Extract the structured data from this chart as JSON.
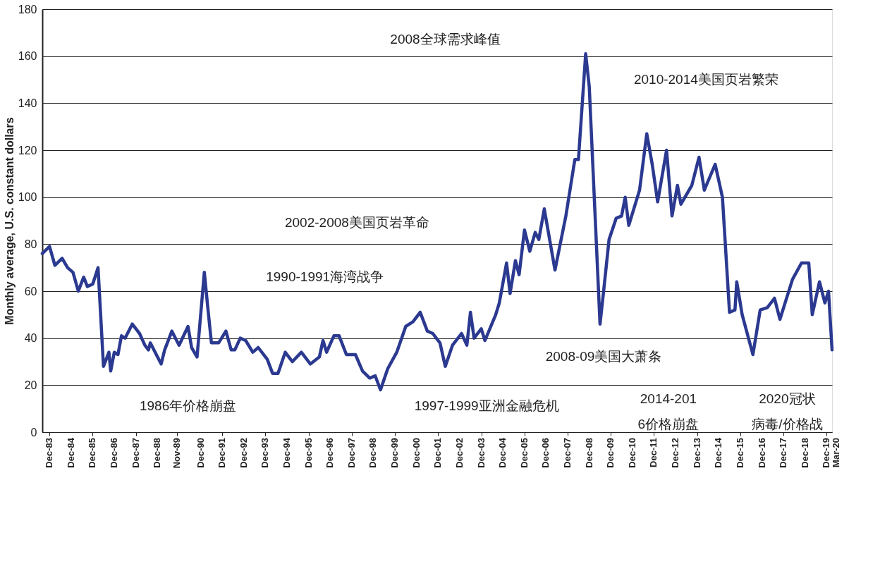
{
  "chart_data": {
    "type": "line",
    "ylabel": "Monthly average, U.S. constant dollars",
    "x": [
      "1983-08",
      "1983-12",
      "1984-03",
      "1984-07",
      "1984-10",
      "1985-01",
      "1985-04",
      "1985-07",
      "1985-09",
      "1985-12",
      "1986-03",
      "1986-06",
      "1986-09",
      "1986-10",
      "1986-12",
      "1987-02",
      "1987-04",
      "1987-06",
      "1987-10",
      "1988-02",
      "1988-05",
      "1988-07",
      "1988-08",
      "1989-02",
      "1989-04",
      "1989-08",
      "1989-12",
      "1990-05",
      "1990-07",
      "1990-10",
      "1991-02",
      "1991-04",
      "1991-06",
      "1991-10",
      "1992-02",
      "1992-05",
      "1992-07",
      "1992-10",
      "1993-01",
      "1993-05",
      "1993-08",
      "1994-01",
      "1994-04",
      "1994-07",
      "1994-11",
      "1995-03",
      "1995-08",
      "1996-01",
      "1996-06",
      "1996-08",
      "1996-10",
      "1997-02",
      "1997-05",
      "1997-09",
      "1998-02",
      "1998-06",
      "1998-10",
      "1999-01",
      "1999-04",
      "1999-08",
      "2000-01",
      "2000-06",
      "2000-10",
      "2001-02",
      "2001-06",
      "2001-09",
      "2002-01",
      "2002-04",
      "2002-08",
      "2003-01",
      "2003-04",
      "2003-06",
      "2003-08",
      "2003-12",
      "2004-02",
      "2004-08",
      "2004-10",
      "2005-02",
      "2005-04",
      "2005-07",
      "2005-09",
      "2005-12",
      "2006-03",
      "2006-06",
      "2006-08",
      "2006-11",
      "2007-05",
      "2007-11",
      "2008-04",
      "2008-06",
      "2008-10",
      "2008-12",
      "2009-06",
      "2009-08",
      "2009-11",
      "2010-03",
      "2010-06",
      "2010-08",
      "2010-10",
      "2011-04",
      "2011-08",
      "2011-11",
      "2012-02",
      "2012-07",
      "2012-10",
      "2013-01",
      "2013-03",
      "2013-09",
      "2014-01",
      "2014-04",
      "2014-10",
      "2015-02",
      "2015-06",
      "2015-09",
      "2015-10",
      "2016-01",
      "2016-07",
      "2016-11",
      "2017-03",
      "2017-07",
      "2017-10",
      "2018-05",
      "2018-10",
      "2019-02",
      "2019-04",
      "2019-08",
      "2019-11",
      "2020-01",
      "2020-03"
    ],
    "series": [
      {
        "color": "#2b3990",
        "values": [
          76,
          79,
          71,
          74,
          70,
          68,
          60,
          66,
          62,
          63,
          70,
          28,
          34,
          26,
          34,
          33,
          41,
          40,
          46,
          42,
          37,
          35,
          38,
          29,
          35,
          43,
          37,
          45,
          36,
          32,
          68,
          53,
          38,
          38,
          43,
          35,
          35,
          40,
          39,
          34,
          36,
          31,
          25,
          25,
          34,
          30,
          34,
          29,
          32,
          39,
          34,
          41,
          41,
          33,
          33,
          26,
          23,
          24,
          18,
          27,
          34,
          45,
          47,
          51,
          43,
          42,
          38,
          28,
          37,
          42,
          37,
          51,
          40,
          44,
          39,
          50,
          55,
          72,
          59,
          73,
          67,
          86,
          77,
          85,
          82,
          95,
          69,
          92,
          116,
          116,
          161,
          147,
          46,
          60,
          82,
          91,
          92,
          100,
          88,
          103,
          127,
          114,
          98,
          120,
          92,
          105,
          97,
          105,
          117,
          103,
          114,
          100,
          51,
          52,
          64,
          50,
          33,
          52,
          53,
          57,
          48,
          65,
          72,
          72,
          50,
          64,
          55,
          60,
          35
        ]
      }
    ],
    "xlim": [
      "1983-08",
      "2020-03"
    ],
    "xticks": [
      {
        "value": "1983-12",
        "label": "Dec-83"
      },
      {
        "value": "1984-12",
        "label": "Dec-84"
      },
      {
        "value": "1985-12",
        "label": "Dec-85"
      },
      {
        "value": "1986-12",
        "label": "Dec-86"
      },
      {
        "value": "1987-12",
        "label": "Dec-87"
      },
      {
        "value": "1988-12",
        "label": "Dec-88"
      },
      {
        "value": "1989-11",
        "label": "Nov-89"
      },
      {
        "value": "1990-12",
        "label": "Dec-90"
      },
      {
        "value": "1991-12",
        "label": "Dec-91"
      },
      {
        "value": "1992-12",
        "label": "Dec-92"
      },
      {
        "value": "1993-12",
        "label": "Dec-93"
      },
      {
        "value": "1994-12",
        "label": "Dec-94"
      },
      {
        "value": "1995-12",
        "label": "Dec-95"
      },
      {
        "value": "1996-12",
        "label": "Dec-96"
      },
      {
        "value": "1997-12",
        "label": "Dec-97"
      },
      {
        "value": "1998-12",
        "label": "Dec-98"
      },
      {
        "value": "1999-12",
        "label": "Dec-99"
      },
      {
        "value": "2000-12",
        "label": "Dec-00"
      },
      {
        "value": "2001-12",
        "label": "Dec-01"
      },
      {
        "value": "2002-12",
        "label": "Dec-02"
      },
      {
        "value": "2003-12",
        "label": "Dec-03"
      },
      {
        "value": "2004-12",
        "label": "Dec-04"
      },
      {
        "value": "2005-12",
        "label": "Dec-05"
      },
      {
        "value": "2006-12",
        "label": "Dec-06"
      },
      {
        "value": "2007-12",
        "label": "Dec-07"
      },
      {
        "value": "2008-12",
        "label": "Dec-08"
      },
      {
        "value": "2009-12",
        "label": "Dec-09"
      },
      {
        "value": "2010-12",
        "label": "Dec-10"
      },
      {
        "value": "2011-12",
        "label": "Dec-11"
      },
      {
        "value": "2012-12",
        "label": "Dec-12"
      },
      {
        "value": "2013-12",
        "label": "Dec-13"
      },
      {
        "value": "2014-12",
        "label": "Dec-14"
      },
      {
        "value": "2015-12",
        "label": "Dec-15"
      },
      {
        "value": "2016-12",
        "label": "Dec-16"
      },
      {
        "value": "2017-12",
        "label": "Dec-17"
      },
      {
        "value": "2018-12",
        "label": "Dec-18"
      },
      {
        "value": "2019-12",
        "label": "Dec-19"
      },
      {
        "value": "2020-03",
        "label": "Mar-20"
      }
    ],
    "ylim": [
      0,
      180
    ],
    "yticks": [
      0,
      20,
      40,
      60,
      80,
      100,
      120,
      140,
      160,
      180
    ],
    "grid": "y",
    "legend": false,
    "line_style": "solid",
    "marker": "none",
    "annotations": [
      "2008全球需求峰值",
      "2010-2014美国页岩繁荣",
      "2002-2008美国页岩革命",
      "1990-1991海湾战争",
      "2008-09美国大萧条",
      "1986年价格崩盘",
      "1997-1999亚洲金融危机",
      "2014-2016价格崩盘",
      "2020冠状病毒/价格战"
    ]
  }
}
